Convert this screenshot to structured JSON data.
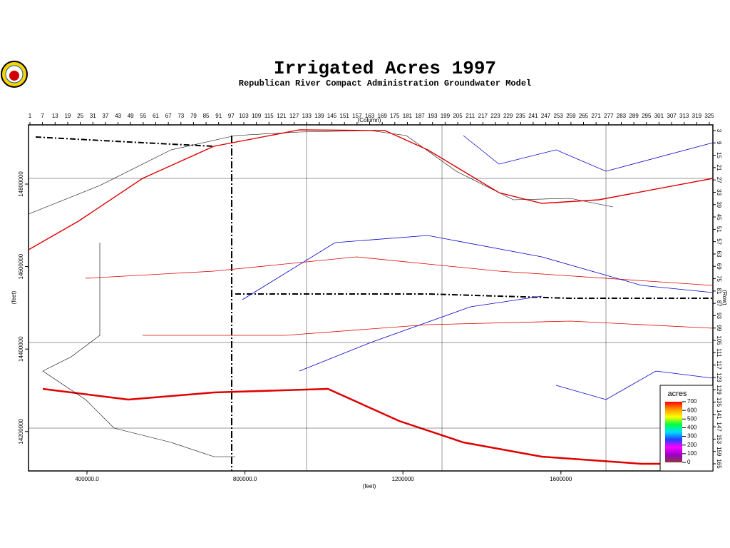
{
  "title": "Irrigated Acres 1997",
  "subtitle": "Republican River Compact Administration Groundwater Model",
  "top_axis": {
    "label": "(Column)",
    "ticks": [
      1,
      7,
      13,
      19,
      25,
      31,
      37,
      43,
      49,
      55,
      61,
      67,
      73,
      79,
      85,
      91,
      97,
      103,
      109,
      115,
      121,
      127,
      133,
      139,
      145,
      151,
      157,
      163,
      169,
      175,
      181,
      187,
      193,
      199,
      205,
      211,
      217,
      223,
      229,
      235,
      241,
      247,
      253,
      259,
      265,
      271,
      277,
      283,
      289,
      295,
      301,
      307,
      313,
      319,
      325
    ],
    "lim": [
      1,
      325
    ]
  },
  "right_axis": {
    "label": "(Row)",
    "ticks": [
      3,
      9,
      15,
      21,
      27,
      33,
      39,
      45,
      51,
      57,
      63,
      69,
      75,
      81,
      87,
      93,
      99,
      105,
      111,
      117,
      123,
      129,
      135,
      141,
      147,
      153,
      159,
      165
    ],
    "lim": [
      3,
      165
    ]
  },
  "x_axis": {
    "label": "(feet)",
    "ticks": [
      {
        "value": 400000,
        "label": "400000.0"
      },
      {
        "value": 800000,
        "label": "800000.0"
      },
      {
        "value": 1200000,
        "label": "1200000"
      },
      {
        "value": 1600000,
        "label": "1600000"
      }
    ]
  },
  "y_axis": {
    "label": "(feet)",
    "ticks": [
      14800000,
      14600000,
      14400000,
      14200000
    ]
  },
  "legend": {
    "title": "acres",
    "ticks": [
      700,
      600,
      500,
      400,
      300,
      200,
      100,
      0
    ],
    "lim": [
      0,
      700
    ],
    "colors": [
      "#8b3a3a",
      "#9900cc",
      "#ff00ff",
      "#2040ff",
      "#00e0ff",
      "#00ff40",
      "#ffff00",
      "#ff9900",
      "#ff0000"
    ]
  }
}
